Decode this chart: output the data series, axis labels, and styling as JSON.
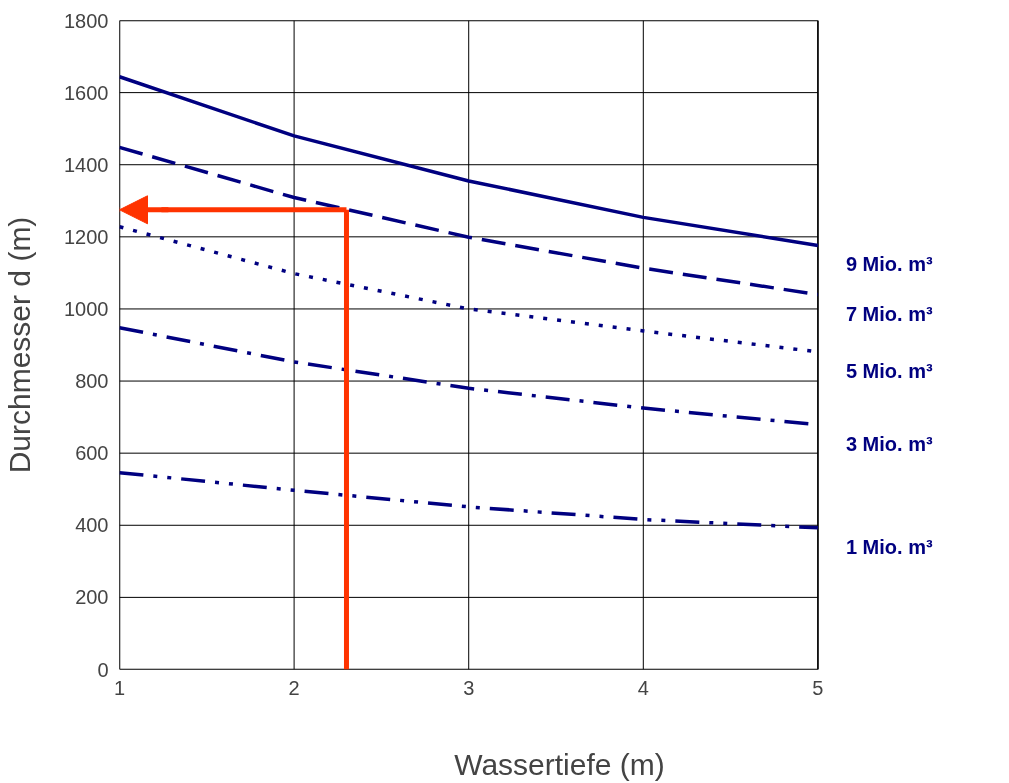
{
  "chart_data": {
    "type": "line",
    "xlabel": "Wassertiefe (m)",
    "ylabel": "Durchmesser d (m)",
    "x": [
      1,
      2,
      3,
      4,
      5
    ],
    "xlim": [
      1,
      5
    ],
    "xticks": [
      1,
      2,
      3,
      4,
      5
    ],
    "ylim": [
      0,
      1800
    ],
    "yticks": [
      0,
      200,
      400,
      600,
      800,
      1000,
      1200,
      1400,
      1600,
      1800
    ],
    "grid": true,
    "marker": "none",
    "ref_lines": [
      {
        "axis": "x",
        "value": 2.3,
        "color": "#ff3300"
      },
      {
        "axis": "y",
        "value": 1275,
        "color": "#ff3300"
      }
    ],
    "series": [
      {
        "name": "9 Mio. m³",
        "color": "#000080",
        "line_style": "solid",
        "values": [
          1644,
          1480,
          1355,
          1254,
          1176
        ]
      },
      {
        "name": "7 Mio. m³",
        "color": "#000080",
        "line_style": "dashed",
        "values": [
          1448,
          1309,
          1199,
          1113,
          1040
        ]
      },
      {
        "name": "5 Mio. m³",
        "color": "#000080",
        "line_style": "dotted",
        "values": [
          1228,
          1098,
          1000,
          939,
          881
        ]
      },
      {
        "name": "3 Mio. m³",
        "color": "#000080",
        "line_style": "dashdot",
        "values": [
          948,
          853,
          780,
          725,
          679
        ]
      },
      {
        "name": "1 Mio. m³",
        "color": "#000080",
        "line_style": "dashdotdot",
        "values": [
          546,
          497,
          451,
          416,
          393
        ]
      }
    ]
  }
}
